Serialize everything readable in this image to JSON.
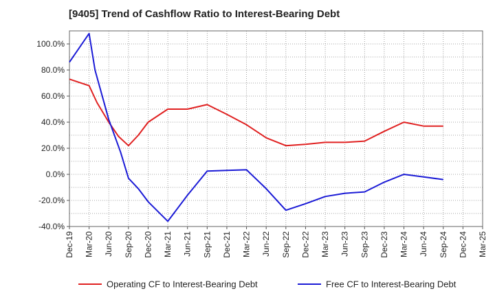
{
  "chart_data": {
    "type": "line",
    "title": "[9405]  Trend of Cashflow Ratio to Interest-Bearing Debt",
    "xlabel": "",
    "ylabel": "",
    "x": [
      "Dec-19",
      "Mar-20",
      "Jun-20",
      "Sep-20",
      "Dec-20",
      "Mar-21",
      "Jun-21",
      "Sep-21",
      "Dec-21",
      "Mar-22",
      "Jun-22",
      "Sep-22",
      "Dec-22",
      "Mar-23",
      "Jun-23",
      "Sep-23",
      "Dec-23",
      "Mar-24",
      "Jun-24",
      "Sep-24",
      "Dec-24",
      "Mar-25"
    ],
    "ylim": [
      -40,
      110
    ],
    "yticks": [
      -40,
      -20,
      0,
      20,
      40,
      60,
      80,
      100
    ],
    "ytick_labels": [
      "-40.0%",
      "-20.0%",
      "0.0%",
      "20.0%",
      "40.0%",
      "60.0%",
      "80.0%",
      "100.0%"
    ],
    "grid": true,
    "legend_position": "bottom",
    "series": [
      {
        "name": "Operating CF to Interest-Bearing Debt",
        "color": "#e02020",
        "points": [
          [
            0,
            73
          ],
          [
            1,
            68
          ],
          [
            1.4,
            55
          ],
          [
            2,
            40
          ],
          [
            2.5,
            29
          ],
          [
            3,
            22
          ],
          [
            3.5,
            30
          ],
          [
            4,
            40
          ],
          [
            5,
            50
          ],
          [
            6,
            50
          ],
          [
            7,
            53.5
          ],
          [
            8,
            46
          ],
          [
            9,
            38
          ],
          [
            10,
            28
          ],
          [
            11,
            22
          ],
          [
            12,
            23
          ],
          [
            13,
            24.5
          ],
          [
            14,
            24.5
          ],
          [
            15,
            25.5
          ],
          [
            16,
            33
          ],
          [
            17,
            40
          ],
          [
            18,
            37
          ],
          [
            19,
            37
          ]
        ]
      },
      {
        "name": "Free CF to Interest-Bearing Debt",
        "color": "#1a1ad6",
        "points": [
          [
            0,
            86
          ],
          [
            1,
            108
          ],
          [
            1.3,
            80
          ],
          [
            2,
            42
          ],
          [
            2.6,
            17
          ],
          [
            3,
            -3
          ],
          [
            3.5,
            -11
          ],
          [
            4,
            -21
          ],
          [
            5,
            -36
          ],
          [
            6,
            -16
          ],
          [
            7,
            2.5
          ],
          [
            8,
            3
          ],
          [
            9,
            3.5
          ],
          [
            10,
            -11
          ],
          [
            11,
            -27.5
          ],
          [
            12,
            -22.5
          ],
          [
            13,
            -17
          ],
          [
            14,
            -14.5
          ],
          [
            15,
            -13.5
          ],
          [
            16,
            -6
          ],
          [
            17,
            0
          ],
          [
            18,
            -2
          ],
          [
            19,
            -4
          ]
        ]
      }
    ]
  }
}
